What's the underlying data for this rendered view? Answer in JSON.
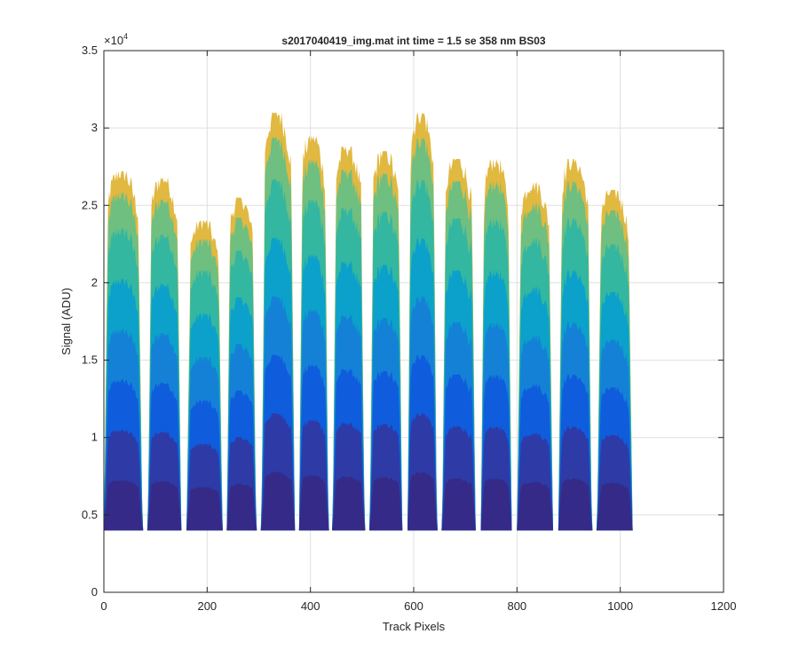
{
  "chart_data": {
    "type": "area",
    "title": "s2017040419_img.mat int time = 1.5 se  358 nm BS03",
    "xlabel": "Track Pixels",
    "ylabel": "Signal (ADU)",
    "xlim": [
      0,
      1200
    ],
    "ylim": [
      0,
      35000
    ],
    "xticks": [
      0,
      200,
      400,
      600,
      800,
      1000,
      1200
    ],
    "yticks": [
      0,
      5000,
      10000,
      15000,
      20000,
      25000,
      30000,
      35000
    ],
    "xtick_labels": [
      "0",
      "200",
      "400",
      "600",
      "800",
      "1000",
      "1200"
    ],
    "ytick_labels": [
      "0",
      "0.5",
      "1",
      "1.5",
      "2",
      "2.5",
      "3",
      "3.5"
    ],
    "y_exponent_label": "×10",
    "y_exponent_power": "4",
    "grid": true,
    "baseline": 4000,
    "x_range": [
      0,
      1024
    ],
    "peaks": [
      {
        "start": 0,
        "end": 75,
        "top": 27200
      },
      {
        "start": 85,
        "end": 150,
        "top": 26800
      },
      {
        "start": 160,
        "end": 230,
        "top": 24000
      },
      {
        "start": 238,
        "end": 295,
        "top": 25500
      },
      {
        "start": 305,
        "end": 370,
        "top": 31000
      },
      {
        "start": 378,
        "end": 435,
        "top": 29500
      },
      {
        "start": 443,
        "end": 505,
        "top": 28800
      },
      {
        "start": 515,
        "end": 578,
        "top": 28500
      },
      {
        "start": 588,
        "end": 645,
        "top": 31000
      },
      {
        "start": 655,
        "end": 720,
        "top": 28000
      },
      {
        "start": 730,
        "end": 790,
        "top": 28000
      },
      {
        "start": 800,
        "end": 870,
        "top": 26500
      },
      {
        "start": 880,
        "end": 945,
        "top": 28000
      },
      {
        "start": 955,
        "end": 1024,
        "top": 26000
      }
    ],
    "series": [
      {
        "level": 0.14,
        "color": "#352a87"
      },
      {
        "level": 0.28,
        "color": "#2e3aa6"
      },
      {
        "level": 0.42,
        "color": "#0f5cdd"
      },
      {
        "level": 0.56,
        "color": "#1481d6"
      },
      {
        "level": 0.7,
        "color": "#0ba1ca"
      },
      {
        "level": 0.84,
        "color": "#33b7a0"
      },
      {
        "level": 0.94,
        "color": "#6fbf80"
      },
      {
        "level": 1.0,
        "color": "#e1b840"
      }
    ]
  }
}
